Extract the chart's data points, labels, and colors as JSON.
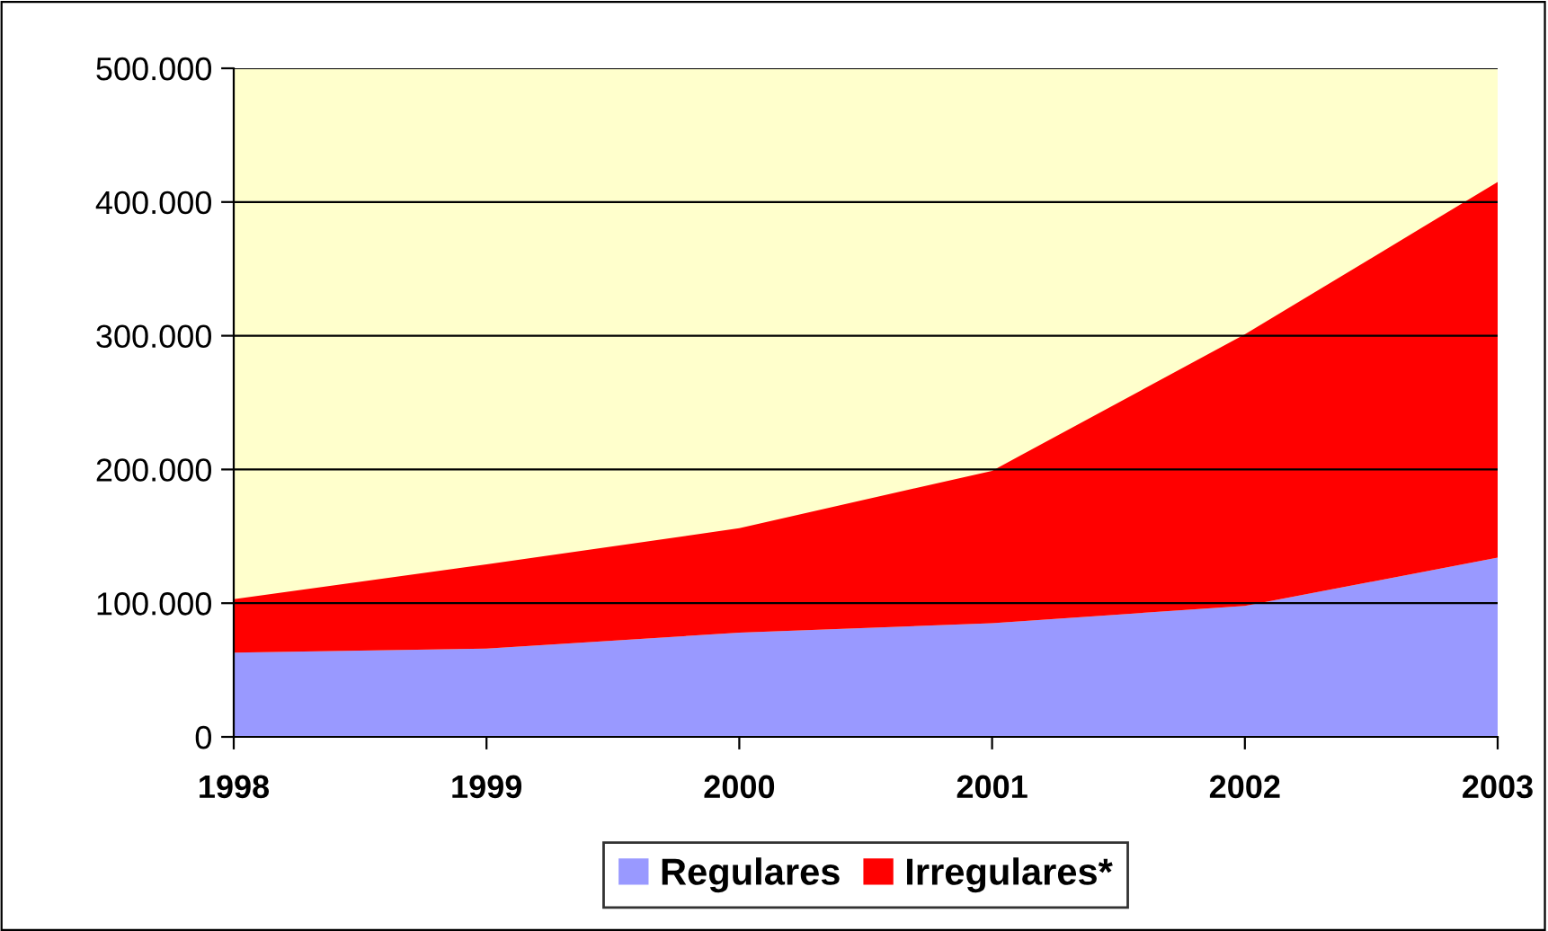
{
  "chart_data": {
    "type": "area",
    "stacked": true,
    "categories": [
      "1998",
      "1999",
      "2000",
      "2001",
      "2002",
      "2003"
    ],
    "series": [
      {
        "name": "Regulares",
        "color": "#9999ff",
        "values": [
          63000,
          66000,
          78000,
          85000,
          98000,
          134000
        ]
      },
      {
        "name": "Irregulares*",
        "color": "#ff0000",
        "values": [
          40000,
          63000,
          78000,
          114000,
          203000,
          281000
        ]
      }
    ],
    "ylim": [
      0,
      500000
    ],
    "yticks": [
      0,
      {
        "value": 100000,
        "label": "100.000"
      },
      {
        "value": 200000,
        "label": "200.000"
      },
      {
        "value": 300000,
        "label": "300.000"
      },
      {
        "value": 400000,
        "label": "400.000"
      },
      {
        "value": 500000,
        "label": "500.000"
      }
    ],
    "grid": "y",
    "legend": "bottom"
  }
}
